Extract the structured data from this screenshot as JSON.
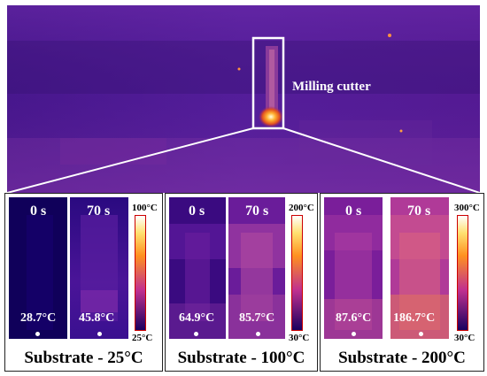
{
  "overview": {
    "annotation": "Milling cutter"
  },
  "panels": [
    {
      "caption": "Substrate - 25°C",
      "time_labels": [
        "0 s",
        "70 s"
      ],
      "spot_temps": [
        "28.7°C",
        "45.8°C"
      ],
      "scale_max": "100°C",
      "scale_min": "25°C"
    },
    {
      "caption": "Substrate - 100°C",
      "time_labels": [
        "0 s",
        "70 s"
      ],
      "spot_temps": [
        "64.9°C",
        "85.7°C"
      ],
      "scale_max": "200°C",
      "scale_min": "30°C"
    },
    {
      "caption": "Substrate - 200°C",
      "time_labels": [
        "0 s",
        "70 s"
      ],
      "spot_temps": [
        "87.6°C",
        "186.7°C"
      ],
      "scale_max": "300°C",
      "scale_min": "30°C"
    }
  ],
  "colors": {
    "colorbar_bottom": "#1a0060",
    "colorbar_mid": "#c03090",
    "colorbar_upper": "#ff9020",
    "colorbar_top": "#ffffff"
  }
}
